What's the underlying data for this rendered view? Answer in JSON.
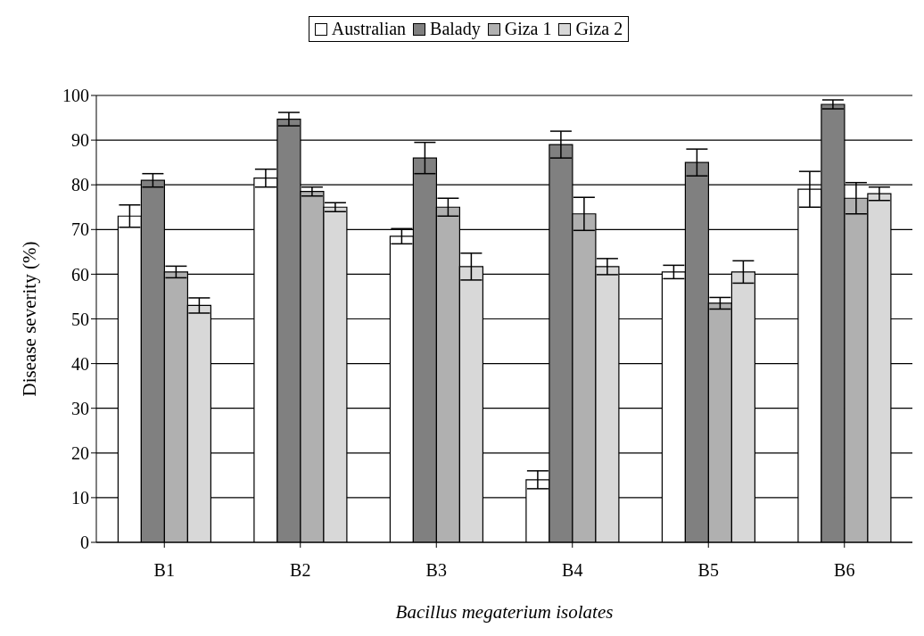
{
  "chart_data": {
    "type": "bar",
    "xlabel": "Bacillus megaterium isolates",
    "ylabel": "Disease severity (%)",
    "categories": [
      "B1",
      "B2",
      "B3",
      "B4",
      "B5",
      "B6"
    ],
    "series": [
      {
        "name": "Australian",
        "color": "#ffffff",
        "values": [
          73,
          81.5,
          68.5,
          14,
          60.5,
          79
        ],
        "errors": [
          2.5,
          2,
          1.7,
          2,
          1.5,
          4
        ]
      },
      {
        "name": "Balady",
        "color": "#808080",
        "values": [
          81,
          94.7,
          86,
          89,
          85,
          98
        ],
        "errors": [
          1.5,
          1.5,
          3.5,
          3,
          3,
          1
        ]
      },
      {
        "name": "Giza 1",
        "color": "#b0b0b0",
        "values": [
          60.5,
          78.5,
          75,
          73.5,
          53.5,
          77
        ],
        "errors": [
          1.3,
          1,
          2,
          3.7,
          1.3,
          3.5
        ]
      },
      {
        "name": "Giza 2",
        "color": "#d8d8d8",
        "values": [
          53,
          75,
          61.7,
          61.7,
          60.5,
          78
        ],
        "errors": [
          1.7,
          1,
          3,
          1.8,
          2.5,
          1.5
        ]
      }
    ],
    "ylim": [
      0,
      100
    ],
    "yticks": [
      0,
      10,
      20,
      30,
      40,
      50,
      60,
      70,
      80,
      90,
      100
    ],
    "grid": "y",
    "legend": "top"
  }
}
